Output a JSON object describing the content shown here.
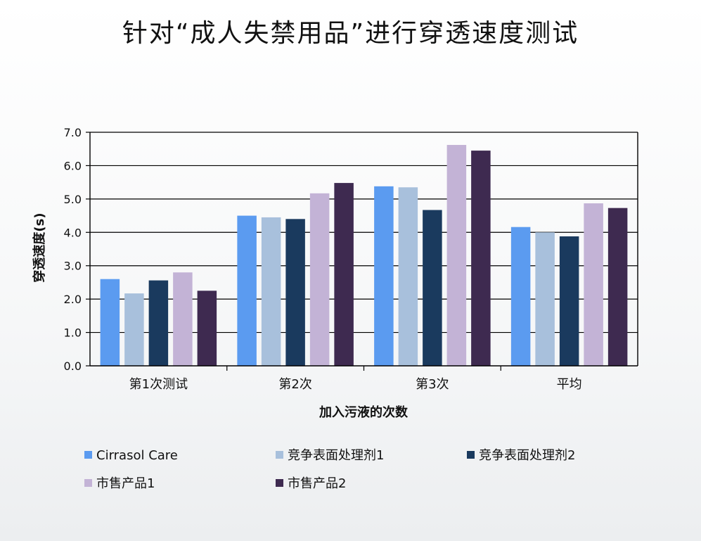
{
  "page": {
    "title": "针对“成人失禁用品”进行穿透速度测试"
  },
  "chart_data": {
    "type": "bar",
    "title": "针对“成人失禁用品”进行穿透速度测试",
    "xlabel": "加入污液的次数",
    "ylabel": "穿透速度(s)",
    "ylim": [
      0,
      7
    ],
    "yticks": [
      "0.0",
      "1.0",
      "2.0",
      "3.0",
      "4.0",
      "5.0",
      "6.0",
      "7.0"
    ],
    "grid": true,
    "legend_position": "bottom",
    "categories": [
      "第1次测试",
      "第2次",
      "第3次",
      "平均"
    ],
    "series": [
      {
        "name": "Cirrasol Care",
        "color": "#5b9bf0",
        "values": [
          2.6,
          4.5,
          5.38,
          4.16
        ]
      },
      {
        "name": "竞争表面处理剂1",
        "color": "#a8c0dc",
        "values": [
          2.17,
          4.45,
          5.35,
          4.0
        ]
      },
      {
        "name": "竞争表面处理剂2",
        "color": "#1a3a5e",
        "values": [
          2.56,
          4.4,
          4.67,
          3.88
        ]
      },
      {
        "name": "市售产品1",
        "color": "#c3b3d6",
        "values": [
          2.8,
          5.17,
          6.62,
          4.87
        ]
      },
      {
        "name": "市售产品2",
        "color": "#3e2a50",
        "values": [
          2.25,
          5.48,
          6.45,
          4.73
        ]
      }
    ]
  }
}
